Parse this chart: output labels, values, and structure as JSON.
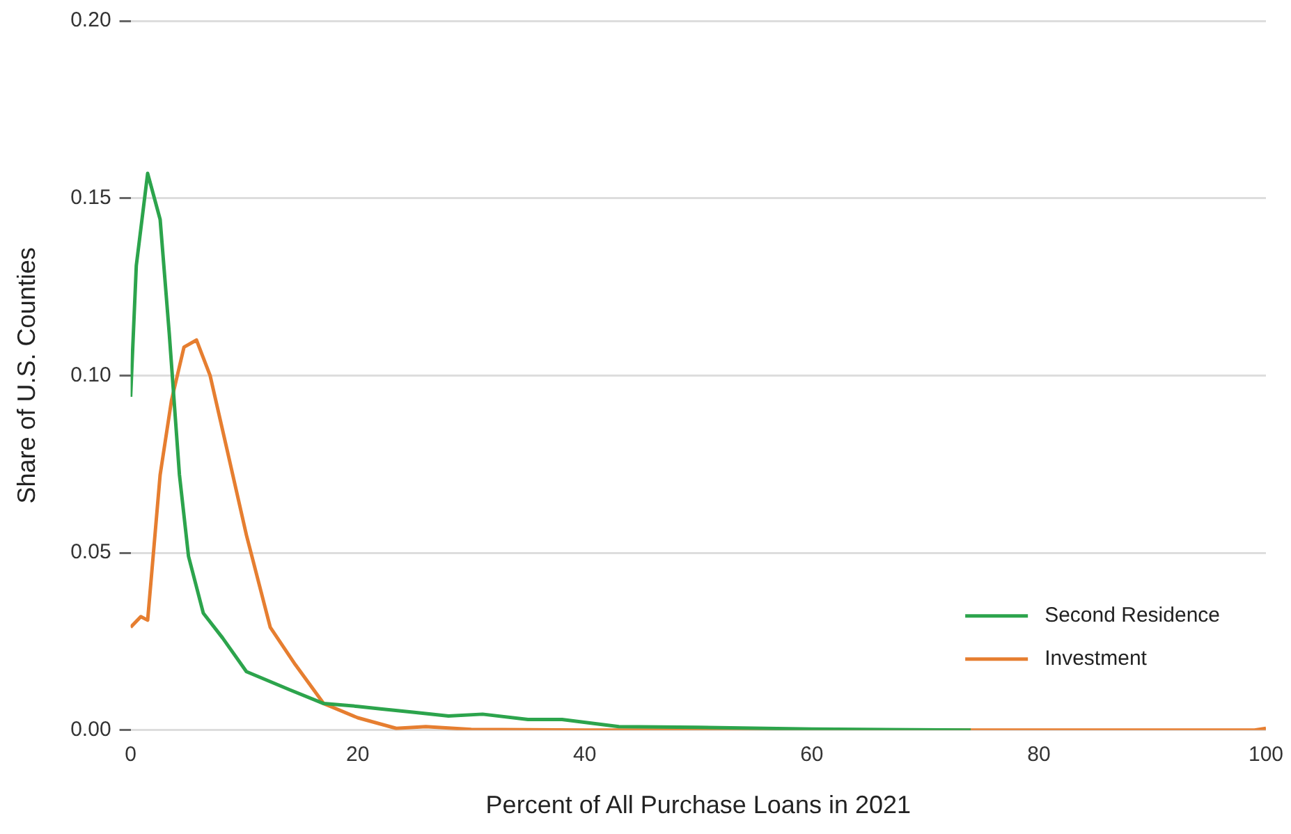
{
  "chart_data": {
    "type": "line",
    "xlabel": "Percent of All Purchase Loans in 2021",
    "ylabel": "Share of U.S. Counties",
    "xlim": [
      0,
      100
    ],
    "xticks": [
      0,
      20,
      40,
      60,
      80,
      100
    ],
    "ylim": [
      0,
      0.2
    ],
    "yticks": [
      {
        "value": 0,
        "label": "0.00"
      },
      {
        "value": 0.05,
        "label": "0.05"
      },
      {
        "value": 0.1,
        "label": "0.10"
      },
      {
        "value": 0.15,
        "label": "0.15"
      },
      {
        "value": 0.2,
        "label": "0.20"
      }
    ],
    "grid": "y",
    "legend": "bottom right",
    "marker": "none",
    "line_style": "solid",
    "series": [
      {
        "name": "Second Residence",
        "color": "#2ca44c",
        "x": [
          0,
          0.5,
          1.5,
          2.6,
          3.4,
          4.3,
          5.1,
          6.4,
          8.1,
          10.2,
          14,
          17,
          20,
          22,
          25,
          28,
          31,
          35,
          38,
          43,
          50,
          60,
          74
        ],
        "values": [
          0.094,
          0.131,
          0.157,
          0.144,
          0.112,
          0.072,
          0.049,
          0.033,
          0.026,
          0.0165,
          0.0114,
          0.0075,
          0.0067,
          0.006,
          0.005,
          0.004,
          0.0045,
          0.003,
          0.003,
          0.001,
          0.0008,
          0.0003,
          0
        ]
      },
      {
        "name": "Investment",
        "color": "#e67e30",
        "x": [
          0,
          0.9,
          1.5,
          2.6,
          3.6,
          4.7,
          5.8,
          7,
          8.5,
          10.2,
          12.3,
          14.5,
          17,
          20,
          23.4,
          26,
          30,
          40,
          60,
          80,
          99,
          100
        ],
        "values": [
          0.029,
          0.032,
          0.031,
          0.072,
          0.093,
          0.108,
          0.11,
          0.1,
          0.079,
          0.055,
          0.029,
          0.0185,
          0.0075,
          0.0035,
          0.0005,
          0.001,
          0.0002,
          0,
          0,
          0,
          0,
          0.0005
        ]
      }
    ]
  }
}
